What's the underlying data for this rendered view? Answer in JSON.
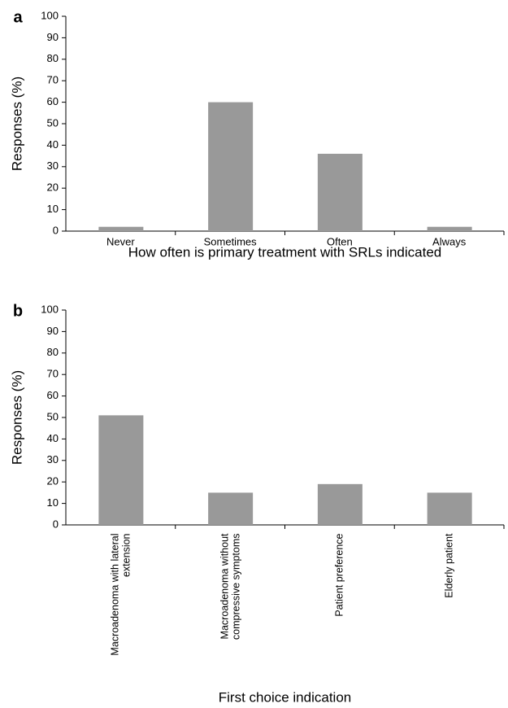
{
  "chart_data": [
    {
      "type": "bar",
      "panel_label": "a",
      "x_label": "How often is primary treatment with SRLs indicated",
      "y_label": "Responses (%)",
      "categories": [
        "Never",
        "Sometimes",
        "Often",
        "Always"
      ],
      "values": [
        2,
        60,
        36,
        2
      ],
      "color": "#999999",
      "ylim": [
        0,
        100
      ],
      "yticks": [
        0,
        10,
        20,
        30,
        40,
        50,
        60,
        70,
        80,
        90,
        100
      ]
    },
    {
      "type": "bar",
      "panel_label": "b",
      "x_label": "First choice indication",
      "y_label": "Responses (%)",
      "categories": [
        "Macroadenoma with lateral extension",
        "Macroadenoma without compressive symptoms",
        "Patient preference",
        "Elderly patient"
      ],
      "values": [
        51,
        15,
        19,
        15
      ],
      "color": "#999999",
      "ylim": [
        0,
        100
      ],
      "yticks": [
        0,
        10,
        20,
        30,
        40,
        50,
        60,
        70,
        80,
        90,
        100
      ]
    }
  ]
}
